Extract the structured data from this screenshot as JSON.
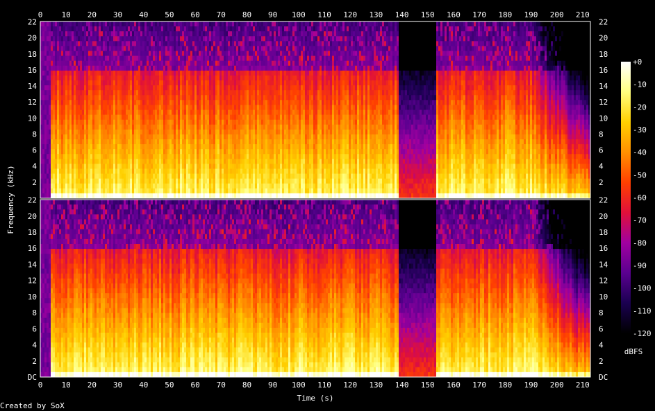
{
  "chart_data": {
    "type": "heatmap",
    "title": "",
    "channels": 2,
    "xlabel": "Time (s)",
    "ylabel": "Frequency (kHz)",
    "xlim": [
      0,
      213
    ],
    "ylim": [
      0,
      22.05
    ],
    "x_ticks": [
      0,
      10,
      20,
      30,
      40,
      50,
      60,
      70,
      80,
      90,
      100,
      110,
      120,
      130,
      140,
      150,
      160,
      170,
      180,
      190,
      200,
      210
    ],
    "y_ticks_top": [
      "22",
      "20",
      "18",
      "16",
      "14",
      "12",
      "10",
      "8",
      "6",
      "4",
      "2"
    ],
    "y_ticks_bottom": [
      "22",
      "20",
      "18",
      "16",
      "14",
      "12",
      "10",
      "8",
      "6",
      "4",
      "2",
      "DC"
    ],
    "colorbar": {
      "label": "dBFS",
      "range": [
        -120,
        0
      ],
      "ticks": [
        "+0",
        "-10",
        "-20",
        "-30",
        "-40",
        "-50",
        "-60",
        "-70",
        "-80",
        "-90",
        "-100",
        "-110",
        "-120"
      ],
      "stops": [
        "#000000",
        "#1a0050",
        "#5a0090",
        "#a000a0",
        "#e0103a",
        "#ff4000",
        "#ff9000",
        "#ffd000",
        "#ffff80",
        "#ffffff"
      ]
    },
    "features": {
      "lowpass_cutoff_khz": 16,
      "quiet_gap_s": [
        138,
        153
      ],
      "fade_out_start_s": 190
    },
    "footer": "Created by SoX"
  }
}
